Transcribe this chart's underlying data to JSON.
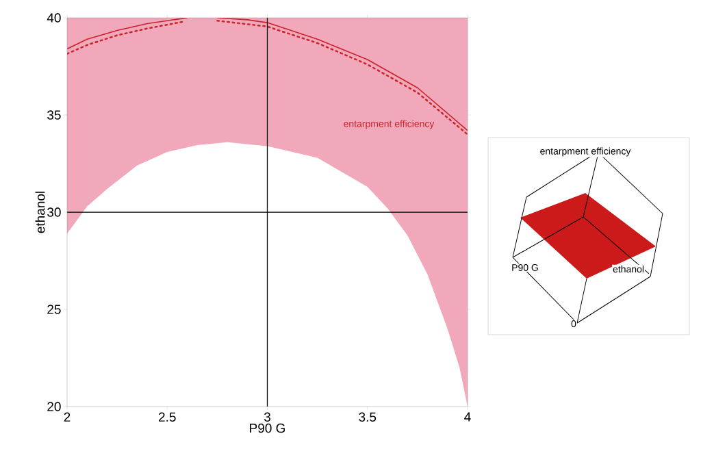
{
  "chart_data": {
    "type": "line",
    "xlabel": "P90 G",
    "ylabel": "ethanol",
    "xlim": [
      2,
      4
    ],
    "ylim": [
      20,
      40
    ],
    "xticks": [
      2,
      2.5,
      3,
      3.5,
      4
    ],
    "yticks": [
      20,
      25,
      30,
      35,
      40
    ],
    "series": [
      {
        "type": "area",
        "color": "#ffffff",
        "x": [
          2,
          2.1,
          2.2,
          2.35,
          2.5,
          2.65,
          2.8,
          3,
          3.25,
          3.5,
          3.6,
          3.7,
          3.8,
          3.9,
          3.96,
          4
        ],
        "values": [
          28.9,
          30.3,
          31.2,
          32.4,
          33.1,
          33.45,
          33.6,
          33.4,
          32.8,
          31.3,
          30.2,
          28.8,
          26.8,
          24.0,
          22.0,
          20
        ]
      },
      {
        "color": "#cc2229",
        "x": [
          2,
          2.1,
          2.25,
          2.4,
          2.6,
          2.68,
          2.75,
          2.9,
          3,
          3.25,
          3.5,
          3.75,
          4
        ],
        "values": [
          38.4,
          38.9,
          39.35,
          39.7,
          40,
          null,
          40,
          39.9,
          39.75,
          38.9,
          37.85,
          36.4,
          34.2
        ]
      },
      {
        "color": "#cc2229",
        "line_style": "dotted",
        "x": [
          2,
          2.1,
          2.25,
          2.4,
          2.58,
          2.67,
          2.75,
          3,
          3.25,
          3.5,
          3.75,
          4
        ],
        "values": [
          38.15,
          38.6,
          39.1,
          39.45,
          39.8,
          null,
          39.85,
          39.55,
          38.7,
          37.6,
          36.15,
          34.0
        ]
      }
    ],
    "bands": [
      {
        "axis": "y",
        "from": 20,
        "to": 40,
        "color": "#f0a8ba"
      }
    ],
    "ref_lines": [
      {
        "axis": "x",
        "value": 3,
        "color": "#000000"
      },
      {
        "axis": "y",
        "value": 30,
        "color": "#000000"
      }
    ],
    "annotations": [
      "entarpment efficiency",
      "entarpment efficiency",
      "P90 G",
      "ethanol",
      "0"
    ]
  }
}
